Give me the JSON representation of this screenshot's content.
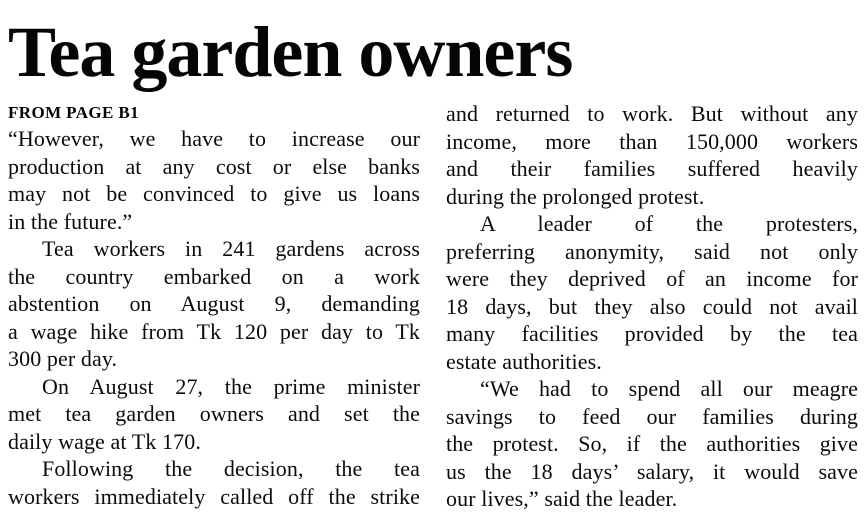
{
  "colors": {
    "paper": "#ffffff",
    "ink": "#0b0b0b"
  },
  "article": {
    "headline": "Tea garden owners",
    "kicker": "FROM PAGE B1",
    "columns": [
      {
        "side": "left",
        "paragraphs": [
          {
            "indent": false,
            "justify_last_line": false,
            "lines": [
              "“However, we have to increase our",
              "production at any cost or else banks",
              "may not be convinced to give us loans",
              "in the future.”"
            ]
          },
          {
            "indent": true,
            "justify_last_line": false,
            "lines": [
              "Tea workers in 241 gardens across",
              "the country embarked on a work",
              "abstention on August 9, demanding",
              "a wage hike from Tk 120 per day to Tk",
              "300 per day."
            ]
          },
          {
            "indent": true,
            "justify_last_line": false,
            "lines": [
              "On August 27, the prime minister",
              "met tea garden owners and set the",
              "daily wage at Tk 170."
            ]
          },
          {
            "indent": true,
            "justify_last_line": true,
            "lines": [
              "Following the decision, the tea",
              "workers immediately called off the strike"
            ]
          }
        ]
      },
      {
        "side": "right",
        "paragraphs": [
          {
            "indent": false,
            "justify_last_line": false,
            "lines": [
              "and returned to work. But without any",
              "income, more than 150,000 workers",
              "and their families suffered heavily",
              "during the prolonged protest."
            ]
          },
          {
            "indent": true,
            "justify_last_line": false,
            "lines": [
              "A leader of the protesters,",
              "preferring anonymity, said not only",
              "were they deprived of an income for",
              "18 days, but they also could not avail",
              "many facilities provided by the tea",
              "estate authorities."
            ]
          },
          {
            "indent": true,
            "justify_last_line": false,
            "lines": [
              "“We had to spend all our meagre",
              "savings to feed our families during",
              "the protest. So, if the authorities give",
              "us the 18 days’ salary, it would save",
              "our lives,” said the leader."
            ]
          }
        ]
      }
    ]
  }
}
